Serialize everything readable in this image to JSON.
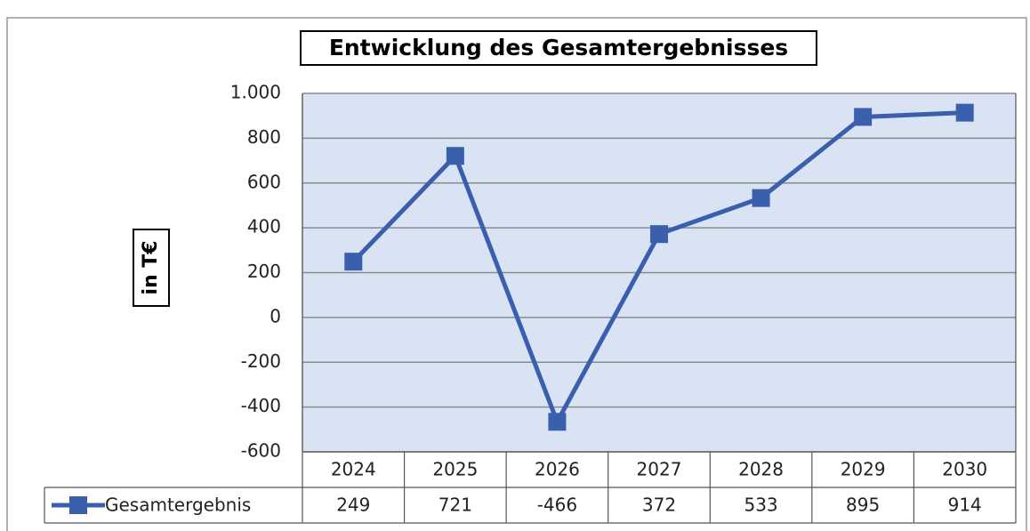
{
  "chart_data": {
    "type": "line",
    "title": "Entwicklung des Gesamtergebnisses",
    "y_label": "in T€",
    "categories": [
      "2024",
      "2025",
      "2026",
      "2027",
      "2028",
      "2029",
      "2030"
    ],
    "series": [
      {
        "name": "Gesamtergebnis",
        "color": "#3a5fad",
        "values": [
          249,
          721,
          -466,
          372,
          533,
          895,
          914
        ]
      }
    ],
    "ylim": [
      -600,
      1000
    ],
    "yticks": [
      -600,
      -400,
      -200,
      0,
      200,
      400,
      600,
      800,
      {
        "value": 1000,
        "label": "1.000"
      }
    ],
    "grid": true,
    "plot_background": "#dae3f3"
  }
}
